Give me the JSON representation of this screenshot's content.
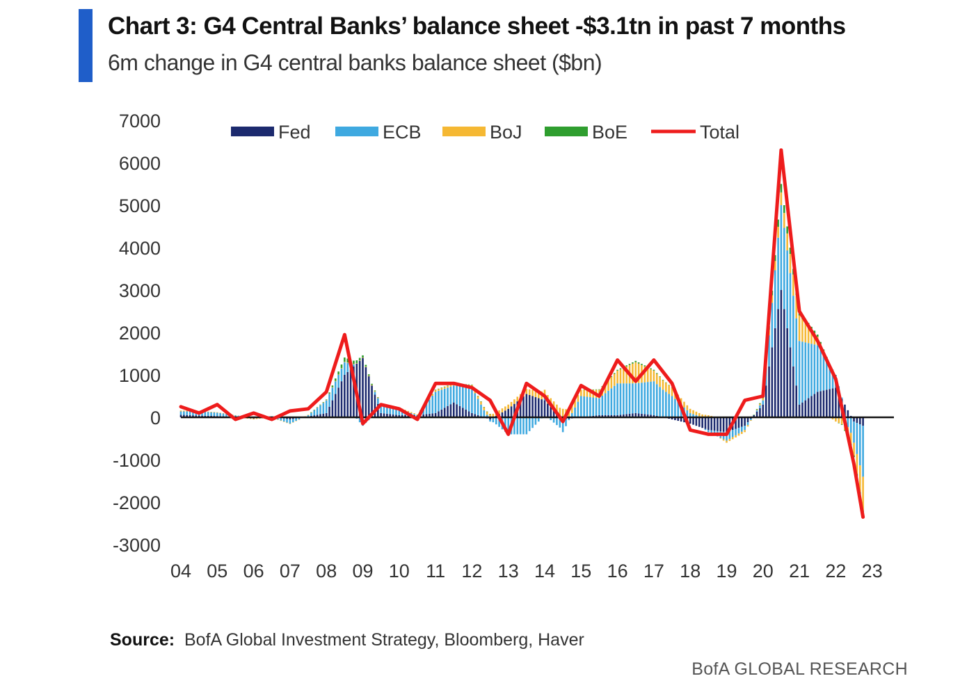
{
  "header": {
    "title": "Chart 3: G4 Central Banks’ balance sheet -$3.1tn in past 7 months",
    "subtitle": "6m change in G4 central banks balance sheet ($bn)"
  },
  "footer": {
    "source_label": "Source:",
    "source_text": "BofA Global Investment Strategy, Bloomberg, Haver",
    "brand": "BofA GLOBAL RESEARCH"
  },
  "colors": {
    "accent": "#1f5ec9",
    "fed": "#1c2a6e",
    "ecb": "#3fa9e0",
    "boj": "#f5b833",
    "boe": "#2f9e2f",
    "total": "#ee1c1c"
  },
  "chart_data": {
    "type": "bar",
    "stacked": true,
    "ylim": [
      -3000,
      7000
    ],
    "yticks": [
      "7000",
      "6000",
      "5000",
      "4000",
      "3000",
      "2000",
      "1000",
      "0",
      "-1000",
      "-2000",
      "-3000"
    ],
    "xticks": [
      "04",
      "05",
      "06",
      "07",
      "08",
      "09",
      "10",
      "11",
      "12",
      "13",
      "14",
      "15",
      "16",
      "17",
      "18",
      "19",
      "20",
      "21",
      "22",
      "23"
    ],
    "legend_position": "top",
    "grid": false,
    "x": [
      2004.0,
      2004.5,
      2005.0,
      2005.5,
      2006.0,
      2006.5,
      2007.0,
      2007.5,
      2008.0,
      2008.5,
      2009.0,
      2009.5,
      2010.0,
      2010.5,
      2011.0,
      2011.5,
      2012.0,
      2012.5,
      2013.0,
      2013.5,
      2014.0,
      2014.5,
      2015.0,
      2015.5,
      2016.0,
      2016.5,
      2017.0,
      2017.5,
      2018.0,
      2018.5,
      2019.0,
      2019.5,
      2020.0,
      2020.5,
      2021.0,
      2021.5,
      2022.0,
      2022.5,
      2022.75
    ],
    "series": [
      {
        "name": "Fed",
        "kind": "bar",
        "values": [
          60,
          40,
          30,
          10,
          -30,
          20,
          -50,
          20,
          100,
          1000,
          1400,
          100,
          50,
          50,
          100,
          350,
          100,
          -50,
          200,
          550,
          400,
          -50,
          0,
          50,
          50,
          100,
          50,
          -50,
          -150,
          -300,
          -350,
          -200,
          300,
          3000,
          300,
          600,
          700,
          -100,
          -200
        ]
      },
      {
        "name": "ECB",
        "kind": "bar",
        "values": [
          80,
          100,
          80,
          40,
          10,
          -20,
          -100,
          30,
          300,
          300,
          -200,
          200,
          150,
          0,
          500,
          400,
          600,
          -50,
          -400,
          -400,
          50,
          -300,
          500,
          400,
          750,
          700,
          800,
          500,
          100,
          -50,
          -200,
          -100,
          100,
          2000,
          1500,
          1100,
          300,
          -500,
          -1200
        ]
      },
      {
        "name": "BoJ",
        "kind": "bar",
        "values": [
          20,
          10,
          10,
          0,
          -20,
          -10,
          -10,
          10,
          10,
          10,
          10,
          20,
          30,
          20,
          40,
          40,
          60,
          80,
          100,
          120,
          200,
          200,
          150,
          200,
          300,
          500,
          250,
          200,
          100,
          50,
          -50,
          -50,
          50,
          300,
          600,
          200,
          -100,
          -300,
          -800
        ]
      },
      {
        "name": "BoE",
        "kind": "bar",
        "values": [
          0,
          0,
          0,
          0,
          0,
          0,
          0,
          0,
          10,
          100,
          50,
          0,
          0,
          0,
          10,
          10,
          10,
          0,
          0,
          0,
          0,
          0,
          0,
          10,
          20,
          30,
          20,
          0,
          0,
          0,
          0,
          0,
          20,
          200,
          100,
          50,
          0,
          -40,
          -100
        ]
      },
      {
        "name": "Total",
        "kind": "line",
        "values": [
          250,
          100,
          300,
          -50,
          100,
          -50,
          150,
          200,
          600,
          1950,
          -150,
          300,
          200,
          -50,
          800,
          800,
          700,
          400,
          -400,
          800,
          500,
          -100,
          750,
          500,
          1350,
          850,
          1350,
          800,
          -300,
          -400,
          -400,
          400,
          500,
          6300,
          2500,
          1800,
          900,
          -1100,
          -2350
        ]
      }
    ]
  }
}
